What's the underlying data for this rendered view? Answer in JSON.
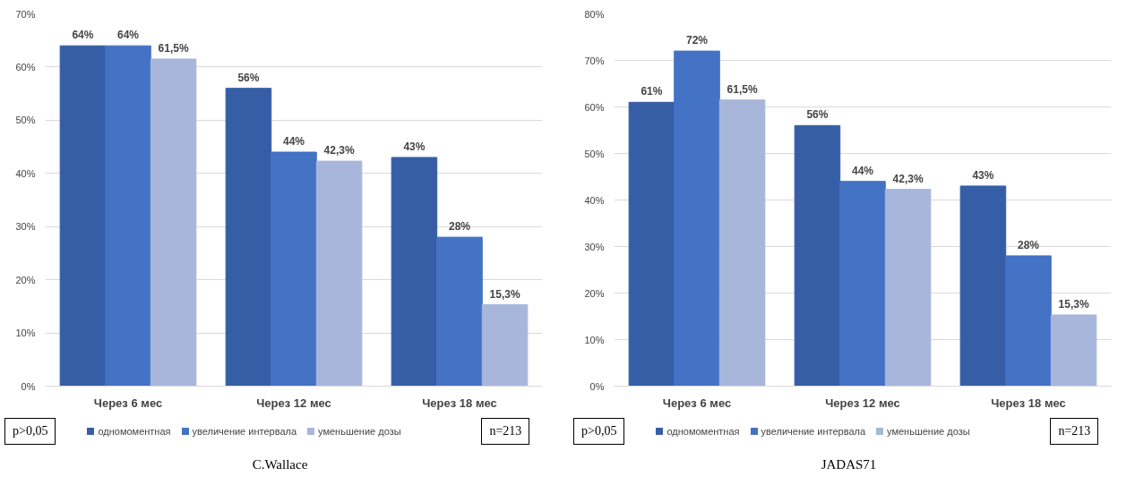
{
  "chart_data": [
    {
      "type": "bar",
      "title": "C.Wallace",
      "categories": [
        "Через 6 мес",
        "Через 12 мес",
        "Через 18 мес"
      ],
      "series": [
        {
          "name": "одномоментная",
          "color": "#365ea6",
          "values": [
            64,
            56,
            43
          ],
          "value_labels": [
            "64%",
            "56%",
            "43%"
          ]
        },
        {
          "name": "увеличение интервала",
          "color": "#4472c4",
          "values": [
            64,
            44,
            28
          ],
          "value_labels": [
            "64%",
            "44%",
            "28%"
          ]
        },
        {
          "name": "уменьшение дозы",
          "color": "#a9b6dc",
          "values": [
            61.5,
            42.3,
            15.3
          ],
          "value_labels": [
            "61,5%",
            "42,3%",
            "15,3%"
          ]
        }
      ],
      "ylim": [
        0,
        70
      ],
      "yticks": [
        {
          "value": 0,
          "label": "0%"
        },
        {
          "value": 10,
          "label": "10%"
        },
        {
          "value": 20,
          "label": "20%"
        },
        {
          "value": 30,
          "label": "30%"
        },
        {
          "value": 40,
          "label": "40%"
        },
        {
          "value": 50,
          "label": "50%"
        },
        {
          "value": 60,
          "label": "60%"
        },
        {
          "value": 70,
          "label": "70%"
        }
      ],
      "grid": "y",
      "legend": "bottom",
      "annotations": [
        "p>0,05",
        "n=213"
      ]
    },
    {
      "type": "bar",
      "title": "JADAS71",
      "categories": [
        "Через 6 мес",
        "Через 12 мес",
        "Через 18 мес"
      ],
      "series": [
        {
          "name": "одномоментная",
          "color": "#365ea6",
          "values": [
            61,
            56,
            43
          ],
          "value_labels": [
            "61%",
            "56%",
            "43%"
          ]
        },
        {
          "name": "увеличение интервала",
          "color": "#4472c4",
          "values": [
            72,
            44,
            28
          ],
          "value_labels": [
            "72%",
            "44%",
            "28%"
          ]
        },
        {
          "name": "уменьшение дозы",
          "color": "#a9b6dc",
          "values": [
            61.5,
            42.3,
            15.3
          ],
          "value_labels": [
            "61,5%",
            "42,3%",
            "15,3%"
          ]
        }
      ],
      "ylim": [
        0,
        80
      ],
      "yticks": [
        {
          "value": 0,
          "label": "0%"
        },
        {
          "value": 10,
          "label": "10%"
        },
        {
          "value": 20,
          "label": "20%"
        },
        {
          "value": 30,
          "label": "30%"
        },
        {
          "value": 40,
          "label": "40%"
        },
        {
          "value": 50,
          "label": "50%"
        },
        {
          "value": 60,
          "label": "60%"
        },
        {
          "value": 70,
          "label": "70%"
        },
        {
          "value": 80,
          "label": "80%"
        }
      ],
      "grid": "y",
      "legend": "bottom",
      "annotations": [
        "p>0,05",
        "n=213"
      ]
    }
  ]
}
